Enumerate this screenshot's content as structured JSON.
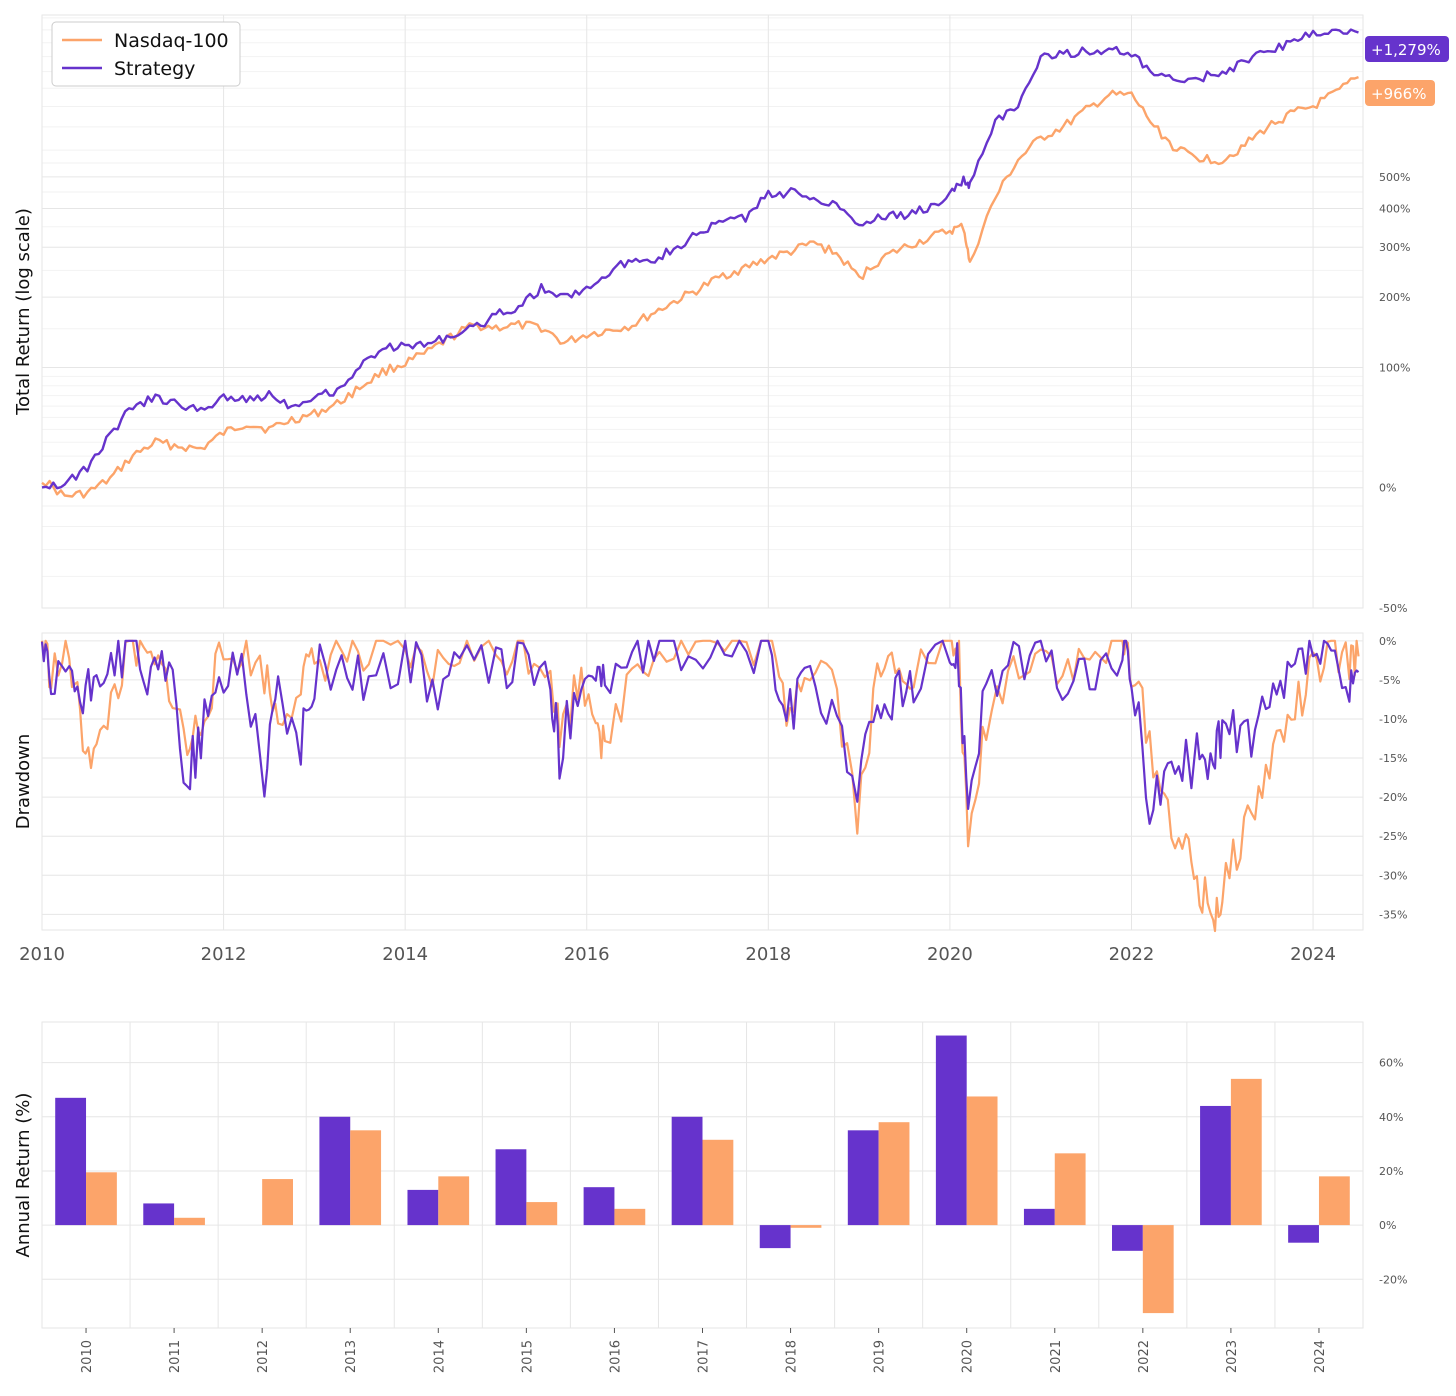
{
  "colors": {
    "strategy": "#6633cc",
    "nasdaq": "#fca46a",
    "grid": "#e6e6e6",
    "tick": "#555555"
  },
  "legend": {
    "nasdaq_label": "Nasdaq-100",
    "strategy_label": "Strategy",
    "placement": "top-left"
  },
  "badges": {
    "strategy": "+1,279%",
    "nasdaq": "+966%"
  },
  "chart_data": [
    {
      "type": "line",
      "ylabel": "Total Return (log scale)",
      "yscale": "log",
      "ylim": [
        -50,
        1280
      ],
      "yticks": [
        "500%",
        "400%",
        "300%",
        "200%",
        "100%",
        "0%",
        "-50%"
      ],
      "ytick_values": [
        500,
        400,
        300,
        200,
        100,
        0,
        -50
      ],
      "grid": true,
      "series": [
        {
          "name": "Nasdaq-100",
          "x": [
            2010.0,
            2010.25,
            2010.5,
            2010.75,
            2011.0,
            2011.25,
            2011.5,
            2011.75,
            2012.0,
            2012.25,
            2012.5,
            2012.75,
            2013.0,
            2013.25,
            2013.5,
            2013.75,
            2014.0,
            2014.25,
            2014.5,
            2014.75,
            2015.0,
            2015.25,
            2015.5,
            2015.75,
            2016.0,
            2016.25,
            2016.5,
            2016.75,
            2017.0,
            2017.25,
            2017.5,
            2017.75,
            2018.0,
            2018.25,
            2018.5,
            2018.75,
            2019.0,
            2019.25,
            2019.5,
            2019.75,
            2020.0,
            2020.15,
            2020.22,
            2020.5,
            2020.75,
            2021.0,
            2021.25,
            2021.5,
            2021.75,
            2022.0,
            2022.25,
            2022.5,
            2022.75,
            2023.0,
            2023.25,
            2023.5,
            2023.75,
            2024.0,
            2024.25,
            2024.5
          ],
          "y": [
            5,
            -5,
            -3,
            5,
            20,
            30,
            27,
            25,
            37,
            45,
            40,
            48,
            53,
            62,
            78,
            95,
            105,
            118,
            138,
            155,
            152,
            155,
            152,
            130,
            142,
            148,
            155,
            175,
            195,
            215,
            240,
            255,
            275,
            290,
            310,
            285,
            235,
            275,
            300,
            320,
            340,
            350,
            260,
            430,
            560,
            650,
            700,
            780,
            860,
            860,
            700,
            600,
            570,
            560,
            620,
            700,
            760,
            800,
            870,
            966
          ]
        },
        {
          "name": "Strategy",
          "x": [
            2010.0,
            2010.25,
            2010.5,
            2010.75,
            2011.0,
            2011.25,
            2011.5,
            2011.75,
            2012.0,
            2012.25,
            2012.5,
            2012.75,
            2013.0,
            2013.25,
            2013.5,
            2013.75,
            2014.0,
            2014.25,
            2014.5,
            2014.75,
            2015.0,
            2015.25,
            2015.5,
            2015.75,
            2016.0,
            2016.25,
            2016.5,
            2016.75,
            2017.0,
            2017.25,
            2017.5,
            2017.75,
            2018.0,
            2018.25,
            2018.5,
            2018.75,
            2019.0,
            2019.25,
            2019.5,
            2019.75,
            2020.0,
            2020.15,
            2020.22,
            2020.5,
            2020.75,
            2021.0,
            2021.25,
            2021.5,
            2021.75,
            2022.0,
            2022.25,
            2022.5,
            2022.75,
            2023.0,
            2023.25,
            2023.5,
            2023.75,
            2024.0,
            2024.25,
            2024.5
          ],
          "y": [
            2,
            2,
            12,
            35,
            60,
            68,
            62,
            55,
            70,
            65,
            72,
            60,
            70,
            75,
            100,
            125,
            125,
            130,
            140,
            150,
            170,
            185,
            215,
            200,
            215,
            245,
            275,
            275,
            300,
            335,
            365,
            375,
            440,
            450,
            430,
            415,
            355,
            380,
            380,
            400,
            440,
            490,
            470,
            730,
            790,
            1090,
            1125,
            1135,
            1150,
            1110,
            980,
            940,
            960,
            1000,
            1060,
            1140,
            1200,
            1270,
            1290,
            1279
          ]
        }
      ]
    },
    {
      "type": "line",
      "ylabel": "Drawdown",
      "ylim": [
        -37,
        1
      ],
      "yticks": [
        "0%",
        "-5%",
        "-10%",
        "-15%",
        "-20%",
        "-25%",
        "-30%",
        "-35%"
      ],
      "ytick_values": [
        0,
        -5,
        -10,
        -15,
        -20,
        -25,
        -30,
        -35
      ],
      "xticks": [
        "2010",
        "2012",
        "2014",
        "2016",
        "2018",
        "2020",
        "2022",
        "2024"
      ],
      "xtick_values": [
        2010,
        2012,
        2014,
        2016,
        2018,
        2020,
        2022,
        2024
      ],
      "grid": true,
      "series": [
        {
          "name": "Nasdaq-100",
          "x": [
            2010.0,
            2010.1,
            2010.3,
            2010.45,
            2010.6,
            2010.8,
            2011.0,
            2011.2,
            2011.4,
            2011.6,
            2011.75,
            2011.95,
            2012.2,
            2012.45,
            2012.6,
            2012.85,
            2013.0,
            2013.3,
            2013.6,
            2014.0,
            2014.3,
            2014.6,
            2015.0,
            2015.3,
            2015.6,
            2015.7,
            2015.9,
            2016.1,
            2016.2,
            2016.5,
            2016.8,
            2017.2,
            2017.6,
            2018.0,
            2018.2,
            2018.4,
            2018.7,
            2018.98,
            2019.2,
            2019.4,
            2019.6,
            2020.0,
            2020.1,
            2020.2,
            2020.4,
            2020.7,
            2021.0,
            2021.3,
            2021.6,
            2021.9,
            2022.0,
            2022.2,
            2022.4,
            2022.6,
            2022.75,
            2022.9,
            2023.0,
            2023.2,
            2023.4,
            2023.6,
            2023.8,
            2024.0,
            2024.2,
            2024.4,
            2024.5
          ],
          "y": [
            0,
            -4,
            -2,
            -12,
            -15,
            -6,
            -1,
            -3,
            -5,
            -14,
            -10,
            -3,
            -1,
            -4,
            -10,
            -5,
            -3,
            -1,
            -3,
            -2,
            -4,
            -1,
            -2,
            -1,
            -3,
            -12,
            -5,
            -8,
            -15,
            -3,
            -1,
            0,
            -1,
            0,
            -9,
            -3,
            -3,
            -22,
            -5,
            -2,
            -4,
            0,
            -2,
            -27,
            -10,
            -3,
            -1,
            -4,
            -2,
            0,
            -3,
            -13,
            -22,
            -27,
            -32,
            -35,
            -33,
            -25,
            -20,
            -13,
            -9,
            -4,
            -2,
            -3,
            -2
          ]
        },
        {
          "name": "Strategy",
          "x": [
            2010.0,
            2010.1,
            2010.3,
            2010.45,
            2010.6,
            2010.8,
            2011.0,
            2011.2,
            2011.4,
            2011.6,
            2011.75,
            2011.95,
            2012.2,
            2012.45,
            2012.6,
            2012.85,
            2013.0,
            2013.3,
            2013.6,
            2014.0,
            2014.3,
            2014.6,
            2015.0,
            2015.3,
            2015.6,
            2015.7,
            2015.9,
            2016.1,
            2016.2,
            2016.5,
            2016.8,
            2017.2,
            2017.6,
            2018.0,
            2018.2,
            2018.4,
            2018.7,
            2018.98,
            2019.2,
            2019.4,
            2019.6,
            2020.0,
            2020.1,
            2020.2,
            2020.4,
            2020.7,
            2021.0,
            2021.3,
            2021.6,
            2021.9,
            2022.0,
            2022.2,
            2022.4,
            2022.6,
            2022.75,
            2022.9,
            2023.0,
            2023.2,
            2023.4,
            2023.6,
            2023.8,
            2024.0,
            2024.2,
            2024.4,
            2024.5
          ],
          "y": [
            0,
            -8,
            -3,
            -9,
            -4,
            -2,
            0,
            -6,
            -3,
            -18,
            -12,
            -6,
            -2,
            -17,
            -6,
            -14,
            -4,
            -3,
            -5,
            -2,
            -6,
            -3,
            -4,
            -2,
            -6,
            -15,
            -5,
            -3,
            -6,
            -2,
            -1,
            -1,
            -2,
            -1,
            -10,
            -6,
            -8,
            -18,
            -10,
            -6,
            -7,
            -1,
            -3,
            -20,
            -5,
            -3,
            -2,
            -6,
            -4,
            -2,
            -4,
            -20,
            -18,
            -16,
            -15,
            -14,
            -12,
            -12,
            -11,
            -8,
            -4,
            -1,
            -3,
            -8,
            -4
          ]
        }
      ]
    },
    {
      "type": "bar",
      "ylabel": "Annual Return (%)",
      "ylim": [
        -38,
        75
      ],
      "yticks": [
        "60%",
        "40%",
        "20%",
        "0%",
        "-20%"
      ],
      "ytick_values": [
        60,
        40,
        20,
        0,
        -20
      ],
      "categories": [
        "2010",
        "2011",
        "2012",
        "2013",
        "2014",
        "2015",
        "2016",
        "2017",
        "2018",
        "2019",
        "2020",
        "2021",
        "2022",
        "2023",
        "2024"
      ],
      "grid": true,
      "series": [
        {
          "name": "Strategy",
          "values": [
            47,
            8,
            0,
            40,
            13,
            28,
            14,
            40,
            -8.5,
            35,
            70,
            6,
            -9.5,
            44,
            -6.5
          ]
        },
        {
          "name": "Nasdaq-100",
          "values": [
            19.5,
            2.7,
            17,
            35,
            18,
            8.5,
            6,
            31.5,
            -1,
            38,
            47.5,
            26.5,
            -32.5,
            54,
            18
          ]
        }
      ]
    }
  ]
}
